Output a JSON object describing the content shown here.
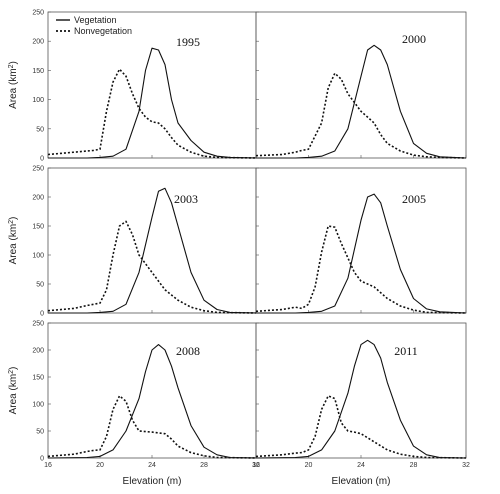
{
  "chart_data": {
    "type": "line",
    "xlabel": "Elevation (m)",
    "ylabel": "Area (km",
    "ylabel_sup": "2",
    "ylabel_end": ")",
    "xlim": [
      16,
      32
    ],
    "ylim": [
      0,
      250
    ],
    "xticks": [
      "16",
      "20",
      "24",
      "28",
      "32"
    ],
    "yticks": [
      "0",
      "50",
      "100",
      "150",
      "200",
      "250"
    ],
    "legend": {
      "placement": "top-left",
      "entries": [
        "Vegetation",
        "Nonvegetation"
      ]
    },
    "panels": [
      {
        "year": "1995",
        "series": [
          {
            "name": "Vegetation",
            "style": "solid",
            "x": [
              16,
              19,
              20,
              21,
              22,
              23,
              23.5,
              24,
              24.5,
              25,
              25.5,
              26,
              27,
              28,
              29,
              30,
              32
            ],
            "y": [
              0,
              0,
              1,
              3,
              15,
              80,
              150,
              188,
              185,
              160,
              100,
              60,
              30,
              10,
              3,
              1,
              0
            ]
          },
          {
            "name": "Nonvegetation",
            "style": "dotted",
            "x": [
              16,
              18,
              19.5,
              20,
              20.5,
              21,
              21.5,
              22,
              22.5,
              23,
              23.5,
              24,
              24.5,
              25,
              25.5,
              26,
              27,
              28,
              29,
              32
            ],
            "y": [
              6,
              10,
              13,
              15,
              80,
              130,
              152,
              140,
              110,
              85,
              70,
              62,
              60,
              50,
              35,
              22,
              10,
              3,
              1,
              0
            ]
          }
        ]
      },
      {
        "year": "2000",
        "series": [
          {
            "name": "Vegetation",
            "style": "solid",
            "x": [
              16,
              19,
              20,
              21,
              22,
              23,
              24,
              24.5,
              25,
              25.5,
              26,
              26.5,
              27,
              28,
              29,
              30,
              32
            ],
            "y": [
              0,
              0,
              1,
              3,
              12,
              50,
              140,
              185,
              193,
              185,
              160,
              120,
              80,
              25,
              8,
              2,
              0
            ]
          },
          {
            "name": "Nonvegetation",
            "style": "dotted",
            "x": [
              16,
              18,
              19,
              19.5,
              20,
              21,
              21.5,
              22,
              22.5,
              23,
              23.5,
              24,
              24.5,
              25,
              25.5,
              26,
              27,
              28,
              29,
              30,
              32
            ],
            "y": [
              4,
              6,
              10,
              13,
              15,
              60,
              120,
              145,
              135,
              110,
              95,
              80,
              70,
              60,
              40,
              25,
              12,
              5,
              2,
              1,
              0
            ]
          }
        ]
      },
      {
        "year": "2003",
        "series": [
          {
            "name": "Vegetation",
            "style": "solid",
            "x": [
              16,
              19,
              20,
              21,
              22,
              23,
              24,
              24.5,
              25,
              25.5,
              26,
              27,
              28,
              29,
              30,
              32
            ],
            "y": [
              0,
              0,
              1,
              3,
              15,
              70,
              165,
              210,
              215,
              190,
              150,
              70,
              22,
              6,
              1,
              0
            ]
          },
          {
            "name": "Nonvegetation",
            "style": "dotted",
            "x": [
              16,
              18,
              19,
              19.5,
              20,
              20.5,
              21,
              21.5,
              22,
              22.5,
              23,
              24,
              25,
              26,
              27,
              28,
              29,
              32
            ],
            "y": [
              4,
              8,
              13,
              15,
              17,
              40,
              100,
              150,
              158,
              135,
              100,
              70,
              40,
              22,
              10,
              4,
              1,
              0
            ]
          }
        ]
      },
      {
        "year": "2005",
        "series": [
          {
            "name": "Vegetation",
            "style": "solid",
            "x": [
              16,
              19,
              20,
              21,
              22,
              23,
              24,
              24.5,
              25,
              25.5,
              26,
              27,
              28,
              29,
              30,
              32
            ],
            "y": [
              0,
              0,
              1,
              3,
              12,
              60,
              160,
              200,
              205,
              190,
              150,
              75,
              25,
              7,
              2,
              0
            ]
          },
          {
            "name": "Nonvegetation",
            "style": "dotted",
            "x": [
              16,
              18,
              19,
              19.5,
              20,
              20.5,
              21,
              21.5,
              22,
              22.5,
              23,
              23.5,
              24,
              25,
              26,
              27,
              28,
              29,
              32
            ],
            "y": [
              3,
              6,
              10,
              8,
              15,
              45,
              105,
              150,
              148,
              120,
              95,
              70,
              55,
              45,
              25,
              12,
              5,
              1,
              0
            ]
          }
        ]
      },
      {
        "year": "2008",
        "series": [
          {
            "name": "Vegetation",
            "style": "solid",
            "x": [
              16,
              19,
              20,
              21,
              22,
              23,
              23.5,
              24,
              24.5,
              25,
              25.5,
              26,
              27,
              28,
              29,
              30,
              32
            ],
            "y": [
              0,
              1,
              3,
              15,
              50,
              110,
              160,
              200,
              210,
              200,
              170,
              130,
              60,
              20,
              6,
              1,
              0
            ]
          },
          {
            "name": "Nonvegetation",
            "style": "dotted",
            "x": [
              16,
              18,
              19,
              19.5,
              20,
              20.5,
              21,
              21.5,
              22,
              22.5,
              23,
              24,
              25,
              25.5,
              26,
              27,
              28,
              29,
              32
            ],
            "y": [
              3,
              7,
              12,
              14,
              15,
              40,
              90,
              115,
              105,
              70,
              50,
              48,
              45,
              35,
              22,
              10,
              4,
              1,
              0
            ]
          }
        ]
      },
      {
        "year": "2011",
        "series": [
          {
            "name": "Vegetation",
            "style": "solid",
            "x": [
              16,
              19,
              20,
              21,
              22,
              23,
              23.5,
              24,
              24.5,
              25,
              25.5,
              26,
              27,
              28,
              29,
              30,
              32
            ],
            "y": [
              0,
              1,
              3,
              15,
              50,
              120,
              170,
              210,
              218,
              210,
              185,
              140,
              70,
              22,
              6,
              1,
              0
            ]
          },
          {
            "name": "Nonvegetation",
            "style": "dotted",
            "x": [
              16,
              18,
              19,
              19.5,
              20,
              20.5,
              21,
              21.5,
              22,
              22.5,
              23,
              23.5,
              24,
              25,
              26,
              27,
              28,
              29,
              32
            ],
            "y": [
              3,
              6,
              9,
              10,
              15,
              40,
              90,
              115,
              110,
              65,
              50,
              48,
              45,
              30,
              15,
              7,
              3,
              1,
              0
            ]
          }
        ]
      }
    ]
  }
}
